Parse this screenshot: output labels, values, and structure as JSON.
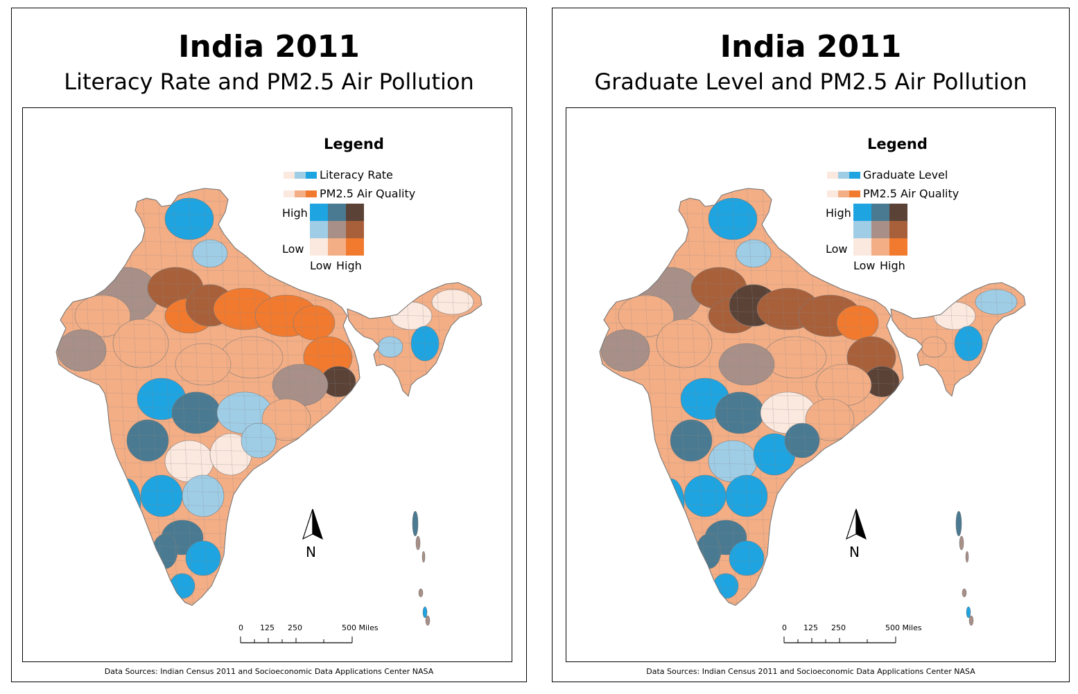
{
  "panels": [
    {
      "title": "India 2011",
      "subtitle": "Literacy Rate and PM2.5 Air Pollution",
      "legend": {
        "title": "Legend",
        "var1_label": "Literacy Rate",
        "var2_label": "PM2.5 Air Quality",
        "axis_high": "High",
        "axis_low": "Low",
        "axis_low_x": "Low",
        "axis_high_x": "High"
      },
      "north_label": "N",
      "scale": {
        "t0": "0",
        "t1": "125",
        "t2": "250",
        "t3": "500 Miles"
      },
      "source": "Data Sources: Indian Census 2011 and Socioeconomic Data Applications Center NASA"
    },
    {
      "title": "India 2011",
      "subtitle": "Graduate Level and PM2.5 Air Pollution",
      "legend": {
        "title": "Legend",
        "var1_label": "Graduate Level",
        "var2_label": "PM2.5 Air Quality",
        "axis_high": "High",
        "axis_low": "Low",
        "axis_low_x": "Low",
        "axis_high_x": "High"
      },
      "north_label": "N",
      "scale": {
        "t0": "0",
        "t1": "125",
        "t2": "250",
        "t3": "500 Miles"
      },
      "source": "Data Sources: Indian Census 2011 and Socioeconomic Data Applications Center NASA"
    }
  ],
  "colors": {
    "bivariate": {
      "high_low": "#1ea4e0",
      "high_mid": "#4a7a91",
      "high_high": "#5a4237",
      "mid_low": "#9fcde6",
      "mid_mid": "#a89088",
      "mid_high": "#a8603a",
      "low_low": "#fbe8de",
      "low_mid": "#f4ae85",
      "low_high": "#f17a2f"
    }
  }
}
